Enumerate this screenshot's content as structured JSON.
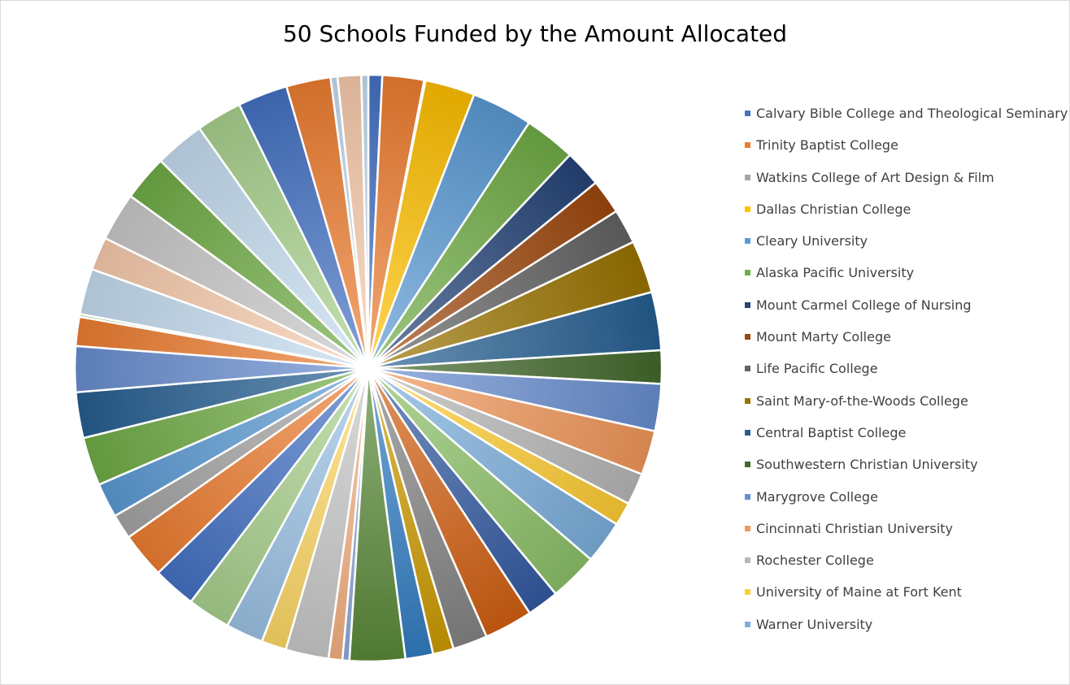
{
  "chart_data": {
    "type": "pie",
    "title": "50 Schools Funded by the Amount Allocated",
    "legend_position": "right",
    "values": [
      1,
      3,
      0.1,
      3.6,
      4.4,
      3.7,
      2.7,
      2.5,
      2.5,
      3.8,
      4.2,
      2.4,
      3.4,
      3.2,
      2.3,
      1.7,
      3.1,
      3.5,
      2.3,
      3.5,
      2.5,
      1.5,
      2,
      4,
      0.5,
      1,
      3.1,
      1.8,
      2.7,
      3.1,
      3.1,
      3.3,
      1.8,
      2.5,
      3.5,
      3.3,
      3.3,
      2.1,
      0.2,
      3.3,
      2.4,
      3.5,
      3.3,
      3.6,
      3.3,
      3.6,
      3.2,
      0.5,
      1.7,
      0.5
    ],
    "colors": [
      "#4472c4",
      "#ed7d31",
      "#a5a5a5",
      "#ffc000",
      "#5b9bd5",
      "#70ad47",
      "#264478",
      "#9e480e",
      "#636363",
      "#997300",
      "#255e91",
      "#43682b",
      "#698ed0",
      "#f1975a",
      "#b7b7b7",
      "#ffcd33",
      "#7cafdd",
      "#8cc168",
      "#335aa1",
      "#d26012",
      "#848484",
      "#cc9a00",
      "#327dc2",
      "#5a8a39",
      "#8faadc",
      "#f4b183",
      "#c9c9c9",
      "#ffd966",
      "#9dc3e6",
      "#a9d18e",
      "#4472c4",
      "#ed7d31",
      "#a5a5a5",
      "#5b9bd5",
      "#70ad47",
      "#255e91",
      "#698ed0",
      "#ed7d31",
      "#a9d18e",
      "#c5dcf0",
      "#f8cbad",
      "#c9c9c9",
      "#70ad47",
      "#c5dcf0",
      "#a9d18e",
      "#4472c4",
      "#ed7d31",
      "#c5dcf0",
      "#f8cbad",
      "#c5dcf0"
    ],
    "legend": [
      {
        "label": "Calvary Bible College and Theological Seminary",
        "color": "#4472c4"
      },
      {
        "label": "Trinity Baptist College",
        "color": "#ed7d31"
      },
      {
        "label": "Watkins College of Art Design & Film",
        "color": "#a5a5a5"
      },
      {
        "label": "Dallas Christian College",
        "color": "#ffc000"
      },
      {
        "label": "Cleary University",
        "color": "#5b9bd5"
      },
      {
        "label": "Alaska Pacific University",
        "color": "#70ad47"
      },
      {
        "label": "Mount Carmel College of Nursing",
        "color": "#264478"
      },
      {
        "label": "Mount Marty College",
        "color": "#9e480e"
      },
      {
        "label": "Life Pacific College",
        "color": "#636363"
      },
      {
        "label": "Saint Mary-of-the-Woods College",
        "color": "#997300"
      },
      {
        "label": "Central Baptist College",
        "color": "#255e91"
      },
      {
        "label": "Southwestern Christian University",
        "color": "#43682b"
      },
      {
        "label": "Marygrove College",
        "color": "#698ed0"
      },
      {
        "label": "Cincinnati Christian University",
        "color": "#f1975a"
      },
      {
        "label": "Rochester College",
        "color": "#b7b7b7"
      },
      {
        "label": "University of Maine at Fort Kent",
        "color": "#ffcd33"
      },
      {
        "label": "Warner University",
        "color": "#7cafdd"
      }
    ]
  }
}
